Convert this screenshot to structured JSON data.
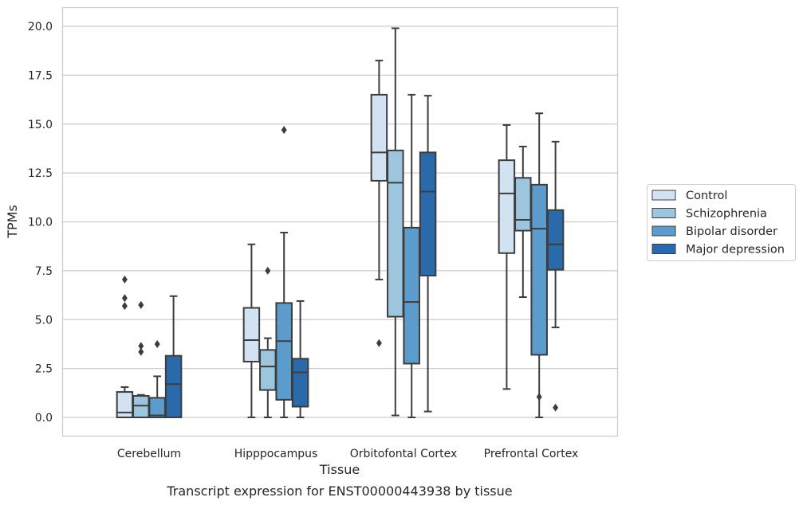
{
  "caption": "Transcript expression for ENST00000443938 by tissue",
  "chart_data": {
    "type": "box",
    "xlabel": "Tissue",
    "ylabel": "TPMs",
    "ylim": [
      -0.95,
      20.95
    ],
    "yticks": [
      "0.0",
      "2.5",
      "5.0",
      "7.5",
      "10.0",
      "12.5",
      "15.0",
      "17.5",
      "20.0"
    ],
    "ytick_values": [
      0,
      2.5,
      5,
      7.5,
      10,
      12.5,
      15,
      17.5,
      20
    ],
    "grid": "horizontal",
    "legend_position": "right",
    "categories": [
      "Cerebellum",
      "Hipppocampus",
      "Orbitofontal Cortex",
      "Prefrontal Cortex"
    ],
    "series": [
      {
        "name": "Control",
        "color": "#d2e2f2",
        "boxes": [
          {
            "whisker_low": 0,
            "q1": 0,
            "median": 0.25,
            "q3": 1.3,
            "whisker_high": 1.55,
            "outliers": [
              5.7,
              6.1,
              7.05
            ]
          },
          {
            "whisker_low": 0,
            "q1": 2.85,
            "median": 3.95,
            "q3": 5.6,
            "whisker_high": 8.85,
            "outliers": []
          },
          {
            "whisker_low": 7.05,
            "q1": 12.1,
            "median": 13.55,
            "q3": 16.5,
            "whisker_high": 18.25,
            "outliers": [
              3.8
            ]
          },
          {
            "whisker_low": 1.45,
            "q1": 8.4,
            "median": 11.45,
            "q3": 13.15,
            "whisker_high": 14.95,
            "outliers": []
          }
        ]
      },
      {
        "name": "Schizophrenia",
        "color": "#9dc6de",
        "boxes": [
          {
            "whisker_low": 0,
            "q1": 0,
            "median": 0.6,
            "q3": 1.1,
            "whisker_high": 1.15,
            "outliers": [
              3.35,
              3.65,
              5.75
            ]
          },
          {
            "whisker_low": 0,
            "q1": 1.4,
            "median": 2.6,
            "q3": 3.45,
            "whisker_high": 4.05,
            "outliers": [
              7.5
            ]
          },
          {
            "whisker_low": 0.1,
            "q1": 5.15,
            "median": 12,
            "q3": 13.65,
            "whisker_high": 19.9,
            "outliers": []
          },
          {
            "whisker_low": 6.15,
            "q1": 9.55,
            "median": 10.1,
            "q3": 12.25,
            "whisker_high": 13.85,
            "outliers": []
          }
        ]
      },
      {
        "name": "Bipolar disorder",
        "color": "#5b9ccc",
        "boxes": [
          {
            "whisker_low": 0,
            "q1": 0,
            "median": 0.1,
            "q3": 1,
            "whisker_high": 2.1,
            "outliers": [
              3.75
            ]
          },
          {
            "whisker_low": 0,
            "q1": 0.9,
            "median": 3.9,
            "q3": 5.85,
            "whisker_high": 9.45,
            "outliers": [
              14.7
            ]
          },
          {
            "whisker_low": 0,
            "q1": 2.75,
            "median": 5.9,
            "q3": 9.7,
            "whisker_high": 16.5,
            "outliers": []
          },
          {
            "whisker_low": 0,
            "q1": 3.2,
            "median": 9.65,
            "q3": 11.9,
            "whisker_high": 15.55,
            "outliers": [
              1.05
            ]
          }
        ]
      },
      {
        "name": "Major depression",
        "color": "#2a6aab",
        "boxes": [
          {
            "whisker_low": 0,
            "q1": 0,
            "median": 1.7,
            "q3": 3.15,
            "whisker_high": 6.2,
            "outliers": []
          },
          {
            "whisker_low": 0,
            "q1": 0.55,
            "median": 2.3,
            "q3": 3,
            "whisker_high": 5.95,
            "outliers": []
          },
          {
            "whisker_low": 0.3,
            "q1": 7.25,
            "median": 11.55,
            "q3": 13.55,
            "whisker_high": 16.45,
            "outliers": []
          },
          {
            "whisker_low": 4.6,
            "q1": 7.55,
            "median": 8.85,
            "q3": 10.6,
            "whisker_high": 14.1,
            "outliers": [
              0.5
            ]
          }
        ]
      }
    ]
  }
}
